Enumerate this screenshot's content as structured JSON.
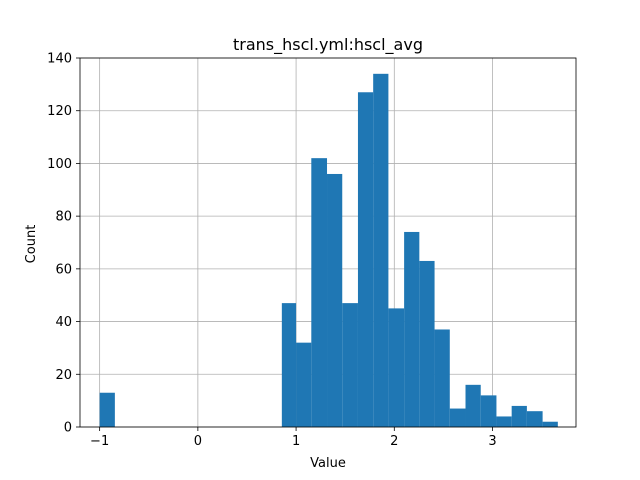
{
  "chart_data": {
    "type": "bar",
    "title": "trans_hscl.yml:hscl_avg",
    "xlabel": "Value",
    "ylabel": "Count",
    "xlim": [
      -1.2,
      3.85
    ],
    "ylim": [
      0,
      140
    ],
    "xticks": [
      -1,
      0,
      1,
      2,
      3
    ],
    "yticks": [
      0,
      20,
      40,
      60,
      80,
      100,
      120,
      140
    ],
    "grid": true,
    "color": "#1f77b4",
    "bins": [
      {
        "x0": -1.0,
        "x1": -0.845,
        "count": 13
      },
      {
        "x0": 0.855,
        "x1": 1.0,
        "count": 47
      },
      {
        "x0": 1.0,
        "x1": 1.155,
        "count": 32
      },
      {
        "x0": 1.155,
        "x1": 1.315,
        "count": 102
      },
      {
        "x0": 1.315,
        "x1": 1.47,
        "count": 96
      },
      {
        "x0": 1.47,
        "x1": 1.63,
        "count": 47
      },
      {
        "x0": 1.63,
        "x1": 1.785,
        "count": 127
      },
      {
        "x0": 1.785,
        "x1": 1.94,
        "count": 134
      },
      {
        "x0": 1.94,
        "x1": 2.1,
        "count": 45
      },
      {
        "x0": 2.1,
        "x1": 2.255,
        "count": 74
      },
      {
        "x0": 2.255,
        "x1": 2.41,
        "count": 63
      },
      {
        "x0": 2.41,
        "x1": 2.565,
        "count": 37
      },
      {
        "x0": 2.565,
        "x1": 2.725,
        "count": 7
      },
      {
        "x0": 2.725,
        "x1": 2.88,
        "count": 16
      },
      {
        "x0": 2.88,
        "x1": 3.04,
        "count": 12
      },
      {
        "x0": 3.04,
        "x1": 3.195,
        "count": 4
      },
      {
        "x0": 3.195,
        "x1": 3.35,
        "count": 8
      },
      {
        "x0": 3.35,
        "x1": 3.51,
        "count": 6
      },
      {
        "x0": 3.51,
        "x1": 3.665,
        "count": 2
      }
    ]
  }
}
